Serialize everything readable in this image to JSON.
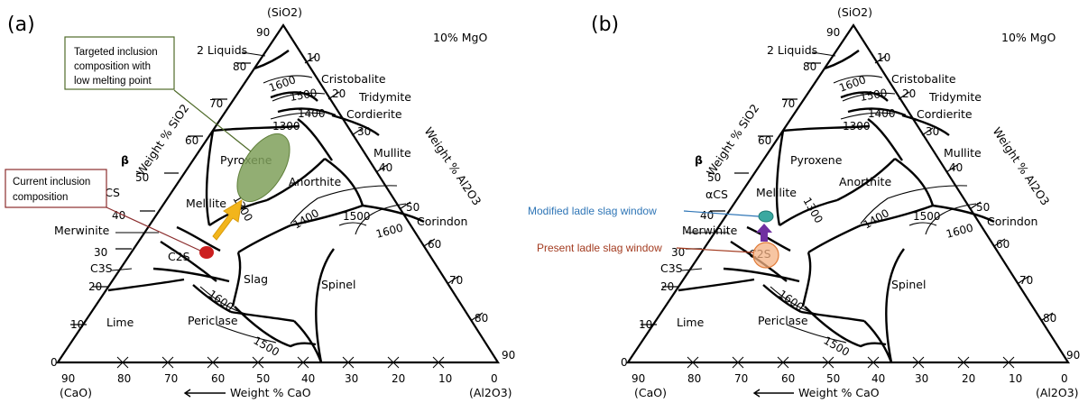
{
  "panels": [
    {
      "letter": "(a)",
      "apex_top": "(SiO2)",
      "apex_left": "(CaO)",
      "apex_right": "(Al2O3)",
      "mgo_label": "10% MgO",
      "axis_left": "Weight % SiO2",
      "axis_right": "Weight % Al2O3",
      "axis_bottom": "Weight % CaO",
      "left_ticks": [
        "0",
        "10",
        "20",
        "30",
        "40",
        "50",
        "60",
        "70",
        "80",
        "90"
      ],
      "right_ticks": [
        "10",
        "20",
        "30",
        "40",
        "50",
        "60",
        "70",
        "80",
        "90"
      ],
      "bottom_ticks": [
        "90",
        "80",
        "70",
        "60",
        "50",
        "40",
        "30",
        "20",
        "10",
        "0"
      ],
      "phases": {
        "two_liquids": "2 Liquids",
        "cristobalite": "Cristobalite",
        "tridymite": "Tridymite",
        "cordierite": "Cordierite",
        "mullite": "Mullite",
        "pyroxene": "Pyroxene",
        "anorthite": "Anorthite",
        "melilite": "Melilite",
        "merwinite": "Merwinite",
        "alpha_cs": "αCS",
        "beta": "β",
        "c2s": "C2S",
        "c3s": "C3S",
        "slag": "Slag",
        "spinel": "Spinel",
        "corindon": "Corindon",
        "lime": "Lime",
        "periclase": "Periclase"
      },
      "isotherms": {
        "t1300": "1300",
        "t1400": "1400",
        "t1500": "1500",
        "t1600": "1600"
      },
      "annotations": {
        "target_line1": "Targeted inclusion",
        "target_line2": "composition with",
        "target_line3": "low melting point",
        "current_line1": "Current inclusion",
        "current_line2": "composition"
      },
      "colors": {
        "target": "#7fa05a",
        "target_box": "#4f6b2a",
        "current": "#cc1f1f",
        "current_box": "#8b2d2d",
        "arrow": "#f2b51c"
      }
    },
    {
      "letter": "(b)",
      "apex_top": "(SiO2)",
      "apex_left": "(CaO)",
      "apex_right": "(Al2O3)",
      "mgo_label": "10% MgO",
      "axis_left": "Weight % SiO2",
      "axis_right": "Weight % Al2O3",
      "axis_bottom": "Weight % CaO",
      "left_ticks": [
        "0",
        "10",
        "20",
        "30",
        "40",
        "50",
        "60",
        "70",
        "80",
        "90"
      ],
      "right_ticks": [
        "10",
        "20",
        "30",
        "40",
        "50",
        "60",
        "70",
        "80",
        "90"
      ],
      "bottom_ticks": [
        "90",
        "80",
        "70",
        "60",
        "50",
        "40",
        "30",
        "20",
        "10",
        "0"
      ],
      "phases": {
        "two_liquids": "2 Liquids",
        "cristobalite": "Cristobalite",
        "tridymite": "Tridymite",
        "cordierite": "Cordierite",
        "mullite": "Mullite",
        "pyroxene": "Pyroxene",
        "anorthite": "Anorthite",
        "melilite": "Melilite",
        "merwinite": "Merwinite",
        "alpha_cs": "αCS",
        "beta": "β",
        "c2s": "C2S",
        "c3s": "C3S",
        "spinel": "Spinel",
        "corindon": "Corindon",
        "lime": "Lime",
        "periclase": "Periclase"
      },
      "isotherms": {
        "t1300": "1300",
        "t1400": "1400",
        "t1500": "1500",
        "t1600": "1600"
      },
      "annotations": {
        "modified": "Modified ladle slag window",
        "present": "Present ladle slag window"
      },
      "colors": {
        "modified": "#3aa8a0",
        "modified_text": "#2e75b6",
        "present": "#f4b183",
        "present_text": "#a33b20",
        "arrow": "#7030a0"
      }
    }
  ]
}
